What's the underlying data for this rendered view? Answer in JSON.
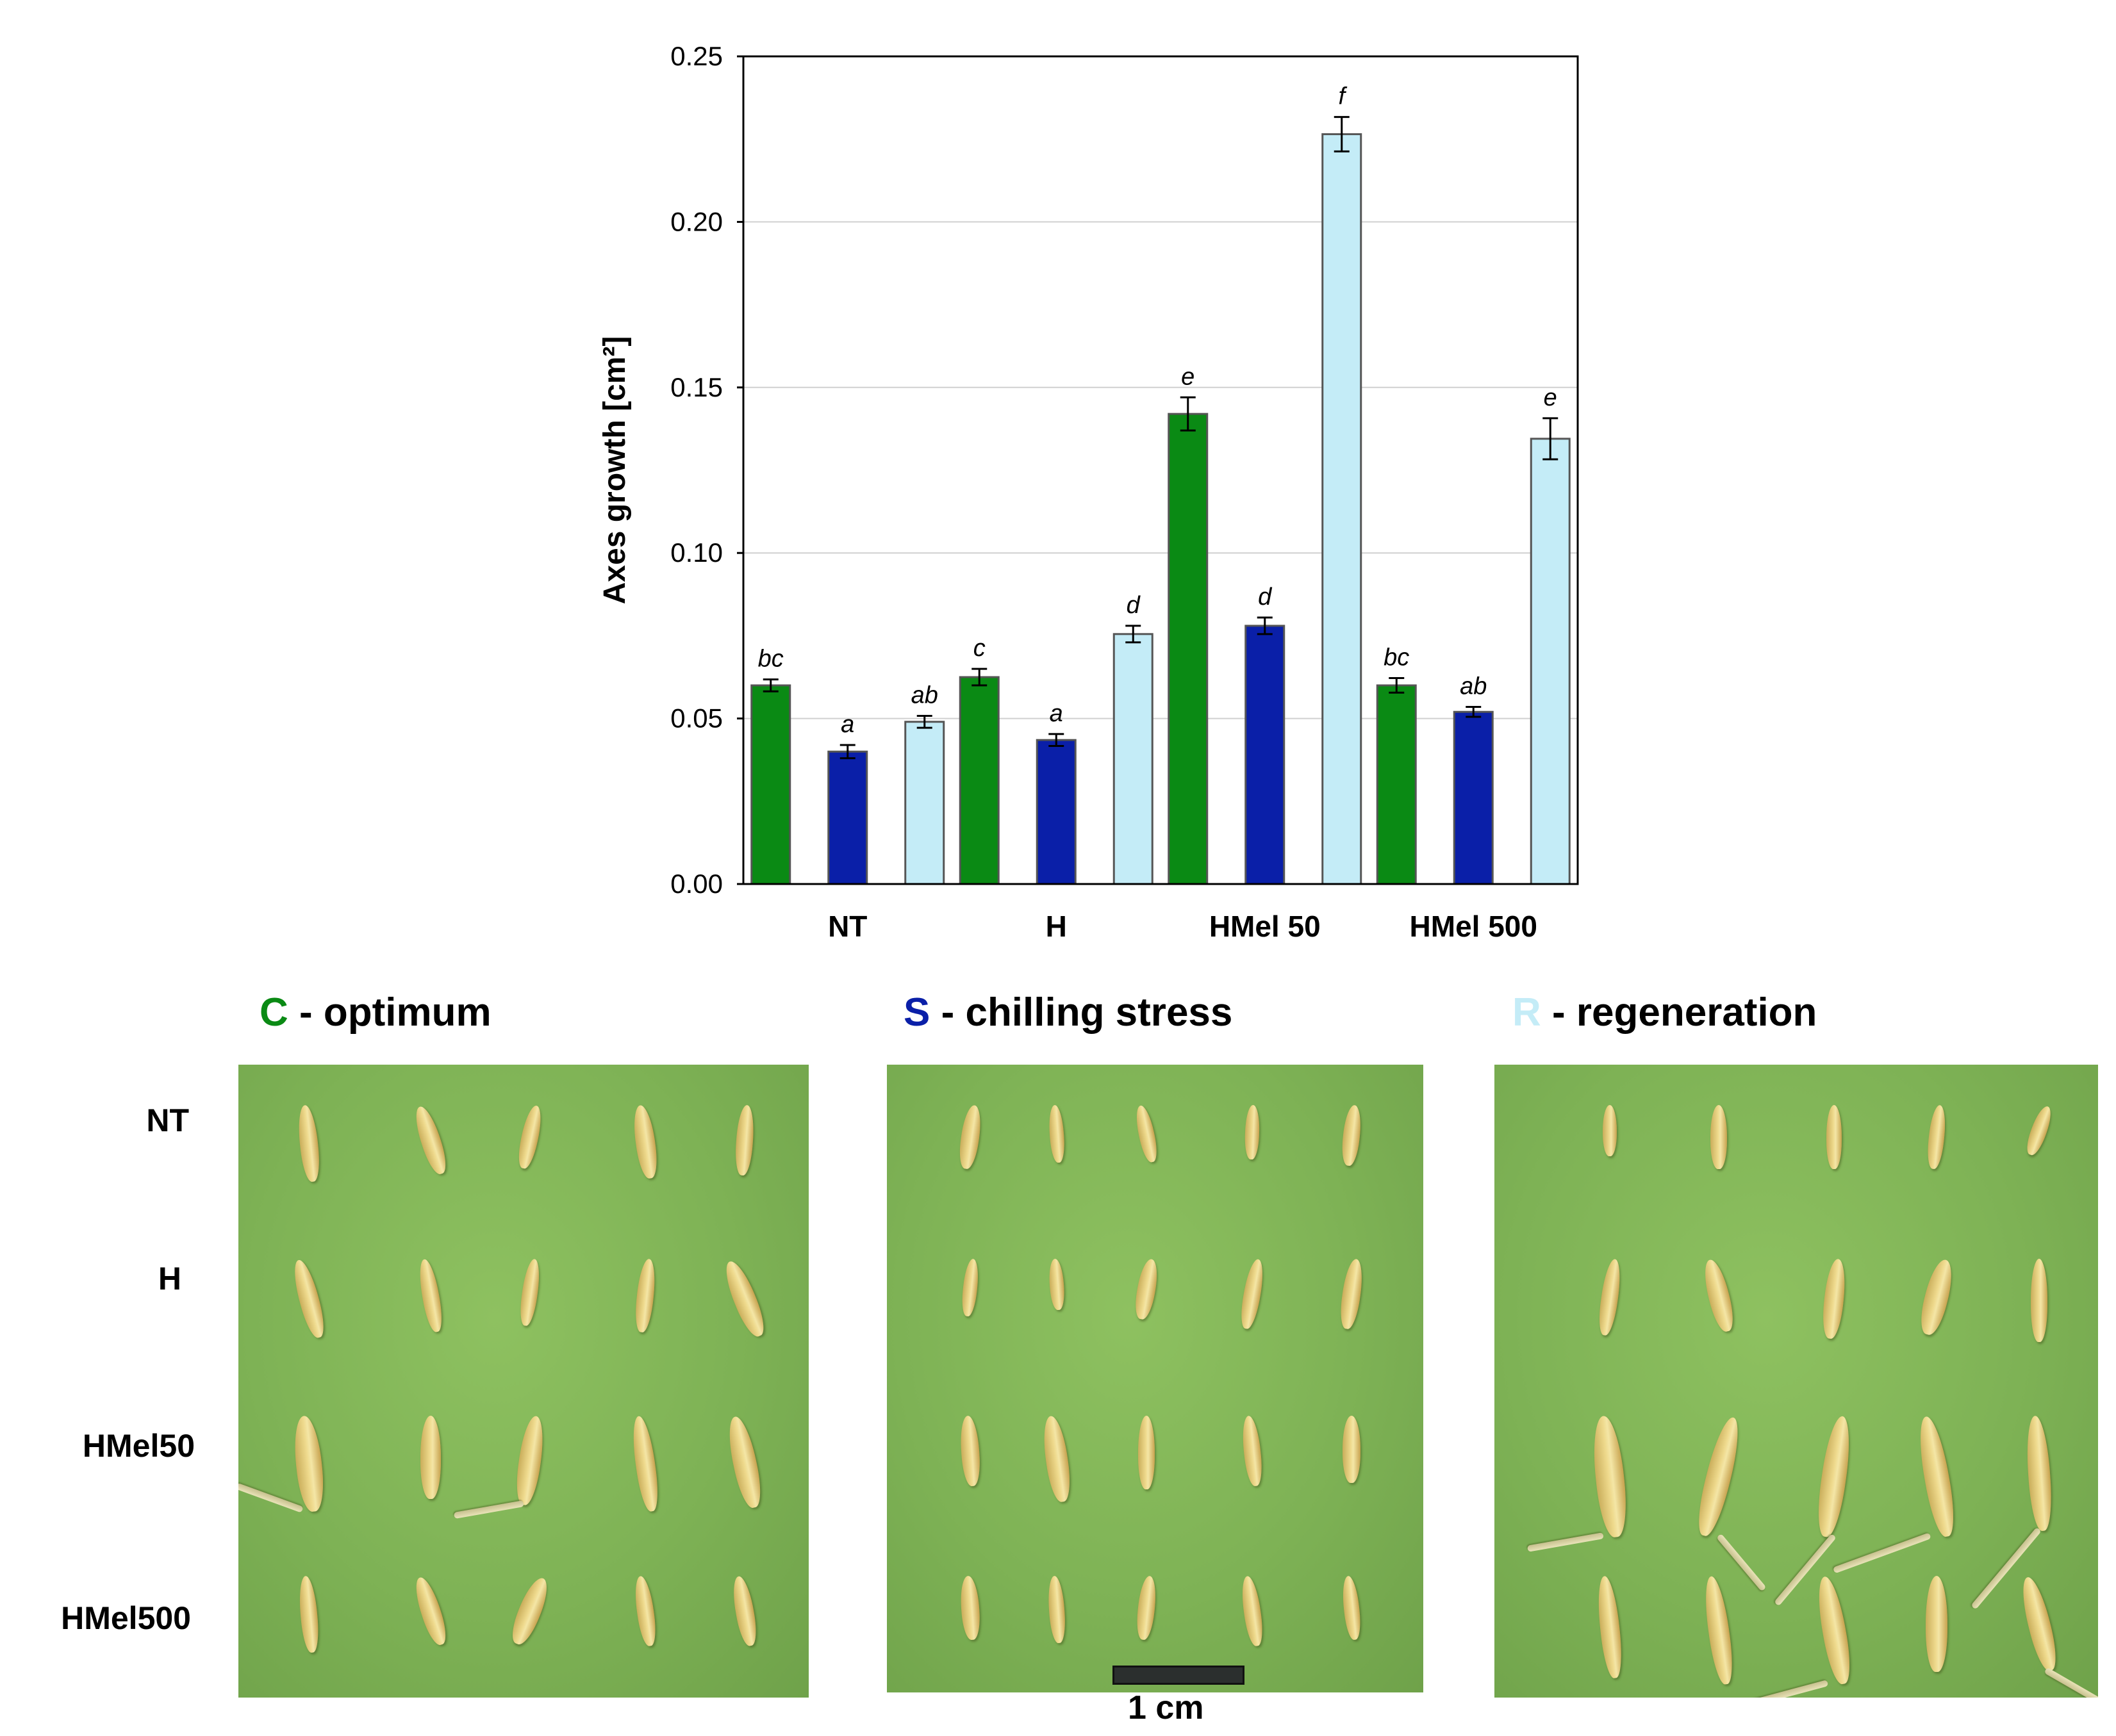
{
  "chart_data": {
    "type": "bar",
    "ylabel": "Axes growth [cm²]",
    "ylim": [
      0,
      0.25
    ],
    "yticks": [
      "0.00",
      "0.05",
      "0.10",
      "0.15",
      "0.20",
      "0.25"
    ],
    "categories": [
      "NT",
      "H",
      "HMel 50",
      "HMel 500"
    ],
    "series": [
      {
        "name": "C - optimum",
        "color": "#0a8a14",
        "values": [
          0.06,
          0.0625,
          0.142,
          0.06
        ],
        "errors": [
          0.0018,
          0.0025,
          0.005,
          0.0022
        ],
        "letters": [
          "bc",
          "c",
          "e",
          "bc"
        ]
      },
      {
        "name": "S - chilling stress",
        "color": "#0a1fa8",
        "values": [
          0.04,
          0.0435,
          0.078,
          0.052
        ],
        "errors": [
          0.002,
          0.0018,
          0.0025,
          0.0015
        ],
        "letters": [
          "a",
          "a",
          "d",
          "ab"
        ]
      },
      {
        "name": "R - regeneration",
        "color": "#c4ecf7",
        "values": [
          0.049,
          0.0755,
          0.2265,
          0.1345
        ],
        "errors": [
          0.0018,
          0.0025,
          0.0052,
          0.0062
        ],
        "letters": [
          "ab",
          "d",
          "f",
          "e"
        ]
      }
    ],
    "grid": true
  },
  "panels": [
    {
      "letter": "C",
      "rest": " - optimum",
      "color": "#0a8a14"
    },
    {
      "letter": "S",
      "rest": " - chilling stress",
      "color": "#0a1fa8"
    },
    {
      "letter": "R",
      "rest": " - regeneration",
      "color": "#c4ecf7"
    }
  ],
  "row_labels": [
    "NT",
    "H",
    "HMel50",
    "HMel500"
  ],
  "scale_bar_label": "1 cm"
}
